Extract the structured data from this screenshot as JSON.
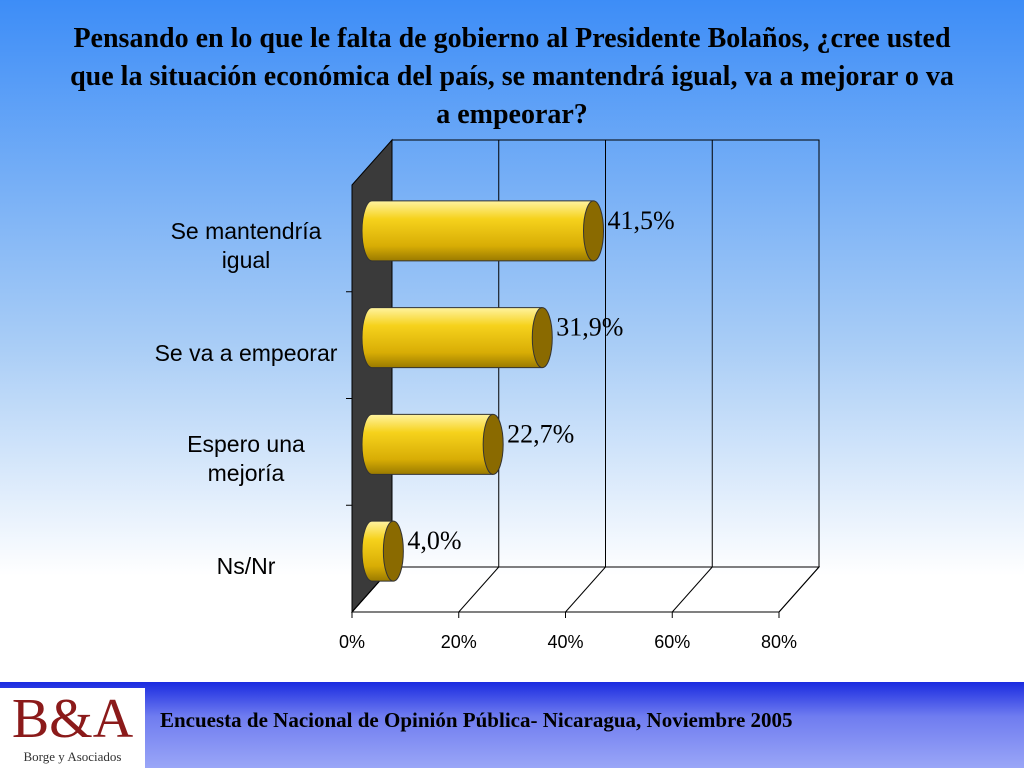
{
  "chart_data": {
    "type": "bar",
    "orientation": "horizontal",
    "title": "Pensando en lo que le falta de gobierno al Presidente Bolaños, ¿cree usted que la situación  económica del país, se mantendrá igual, va a mejorar o va a empeorar?",
    "categories": [
      "Se mantendría igual",
      "Se va a empeorar",
      "Espero una mejoría",
      "Ns/Nr"
    ],
    "values": [
      41.5,
      31.9,
      22.7,
      4.0
    ],
    "value_labels": [
      "41,5%",
      "31,9%",
      "22,7%",
      "4,0%"
    ],
    "color": "#f2c80f",
    "xlim": [
      0,
      80
    ],
    "xticks": [
      {
        "value": 0,
        "label": "0%"
      },
      {
        "value": 20,
        "label": "20%"
      },
      {
        "value": 40,
        "label": "40%"
      },
      {
        "value": 60,
        "label": "60%"
      },
      {
        "value": 80,
        "label": "80%"
      }
    ],
    "grid": true
  },
  "footer": {
    "text": "Encuesta de Nacional de Opinión Pública- Nicaragua, Noviembre 2005",
    "logo": "B&A",
    "logo_subtitle": "Borge y Asociados"
  }
}
